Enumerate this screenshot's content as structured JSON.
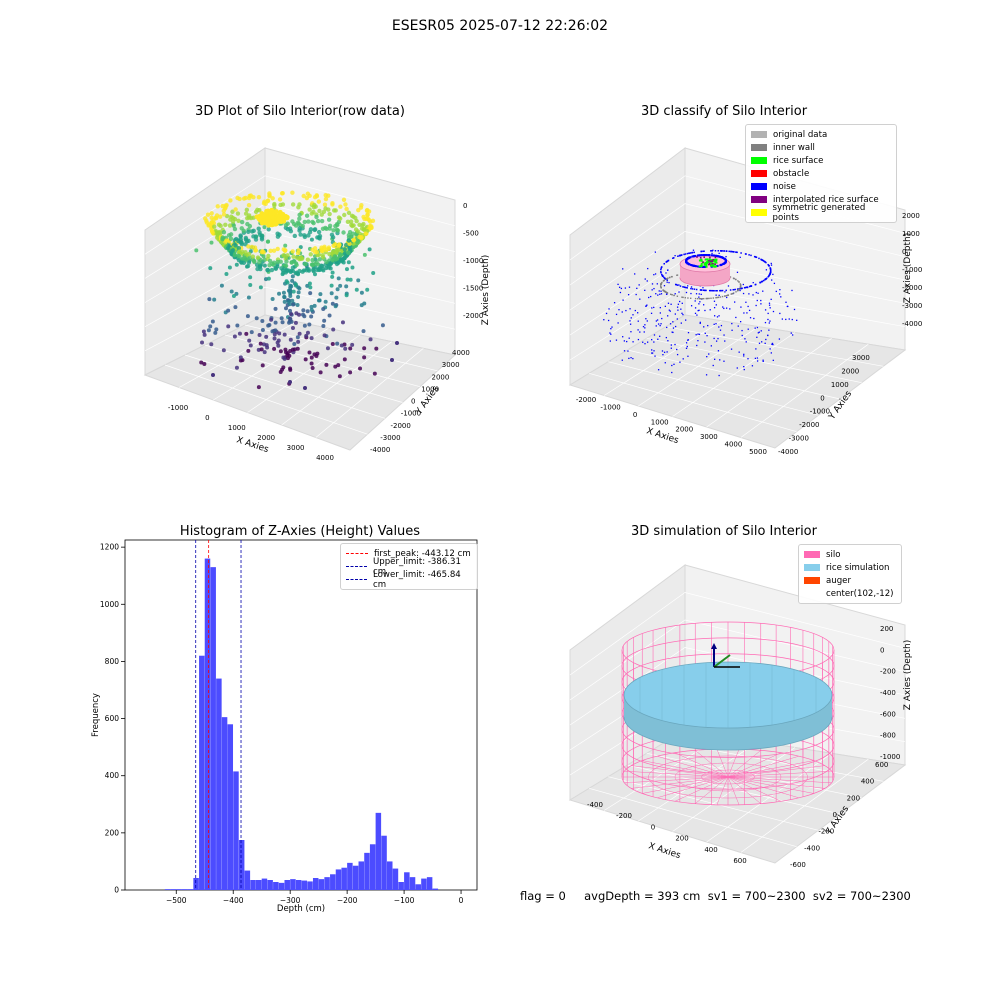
{
  "suptitle": "ESESR05 2025-07-12 22:26:02",
  "footer": "flag = 0     avgDepth = 393 cm  sv1 = 700~2300  sv2 = 700~2300",
  "colors": {
    "original": "#b2b2b2",
    "inner_wall": "#808080",
    "rice_surface": "#00ff00",
    "obstacle": "#ff0000",
    "noise": "#0000ff",
    "interp": "#800080",
    "symmetric": "#ffff00",
    "hist_bar": "#4c4cff",
    "silo": "#ff69b4",
    "rice_sim": "#87ceeb",
    "auger": "#ff4500",
    "peak_line": "#ff0000",
    "limit_line": "#0000aa"
  },
  "chart_data": [
    {
      "type": "scatter",
      "title": "3D Plot of Silo Interior(row data)",
      "xlabel": "X Axies",
      "ylabel": "Y Axies",
      "zlabel": "Z Axies (Depth)",
      "xticks": [
        "-1000",
        "0",
        "1000",
        "2000",
        "3000",
        "4000"
      ],
      "yticks": [
        "-4000",
        "-3000",
        "-2000",
        "-1000",
        "0",
        "1000",
        "2000",
        "3000",
        "4000"
      ],
      "zticks": [
        "-2000",
        "-1500",
        "-1000",
        "-500",
        "0"
      ],
      "colormap": "viridis"
    },
    {
      "type": "scatter",
      "title": "3D classify of Silo Interior",
      "xlabel": "X Axies",
      "ylabel": "Y Axies",
      "zlabel": "Z Axies (Depth)",
      "xticks": [
        "-2000",
        "-1000",
        "0",
        "1000",
        "2000",
        "3000",
        "4000",
        "5000"
      ],
      "yticks": [
        "-4000",
        "-3000",
        "-2000",
        "-1000",
        "0",
        "1000",
        "2000",
        "3000"
      ],
      "zticks": [
        "-4000",
        "-3000",
        "-2000",
        "-1000",
        "0",
        "1000",
        "2000"
      ],
      "legend": [
        "original data",
        "inner wall",
        "rice surface",
        "obstacle",
        "noise",
        "interpolated rice surface",
        "symmetric generated points"
      ],
      "legend_placement": "top-right"
    },
    {
      "type": "bar",
      "title": "Histogram of Z-Axies (Height) Values",
      "xlabel": "Depth (cm)",
      "ylabel": "Frequency",
      "xlim": [
        -590,
        28
      ],
      "ylim": [
        0,
        1225
      ],
      "xticks": [
        -500,
        -400,
        -300,
        -200,
        -100,
        0
      ],
      "yticks": [
        0,
        200,
        400,
        600,
        800,
        1000,
        1200
      ],
      "bin_width": 10,
      "bins_start": [
        -520,
        -510,
        -500,
        -490,
        -480,
        -470,
        -460,
        -450,
        -440,
        -430,
        -420,
        -410,
        -400,
        -390,
        -380,
        -370,
        -360,
        -350,
        -340,
        -330,
        -320,
        -310,
        -300,
        -290,
        -280,
        -270,
        -260,
        -250,
        -240,
        -230,
        -220,
        -210,
        -200,
        -190,
        -180,
        -170,
        -160,
        -150,
        -140,
        -130,
        -120,
        -110,
        -100,
        -90,
        -80,
        -70,
        -60,
        -50,
        -40,
        -30,
        -20,
        -10
      ],
      "values": [
        3,
        3,
        3,
        3,
        3,
        42,
        820,
        1160,
        1130,
        740,
        605,
        580,
        415,
        175,
        68,
        35,
        35,
        40,
        35,
        28,
        25,
        35,
        38,
        35,
        33,
        30,
        42,
        38,
        45,
        55,
        72,
        78,
        95,
        85,
        100,
        130,
        160,
        270,
        190,
        100,
        75,
        28,
        62,
        45,
        20,
        40,
        45,
        5,
        0,
        0,
        0,
        0
      ],
      "vlines": [
        {
          "label": "first_peak: -443.12 cm",
          "x": -443.12,
          "color": "#ff0000"
        },
        {
          "label": "Upper_limit: -386.31 cm",
          "x": -386.31,
          "color": "#0000aa"
        },
        {
          "label": "Lower_limit: -465.84 cm",
          "x": -465.84,
          "color": "#0000aa"
        }
      ],
      "legend_placement": "top-right"
    },
    {
      "type": "scatter",
      "title": "3D simulation of Silo Interior",
      "xlabel": "X Axies",
      "ylabel": "Y Axies",
      "zlabel": "Z Axies (Depth)",
      "xticks": [
        "-400",
        "-200",
        "0",
        "200",
        "400",
        "600"
      ],
      "yticks": [
        "-600",
        "-400",
        "-200",
        "0",
        "200",
        "400",
        "600"
      ],
      "zticks": [
        "-1000",
        "-800",
        "-600",
        "-400",
        "-200",
        "0",
        "200"
      ],
      "legend": [
        "silo",
        "rice simulation",
        "auger",
        "center(102,-12)"
      ],
      "legend_placement": "top-right"
    }
  ]
}
